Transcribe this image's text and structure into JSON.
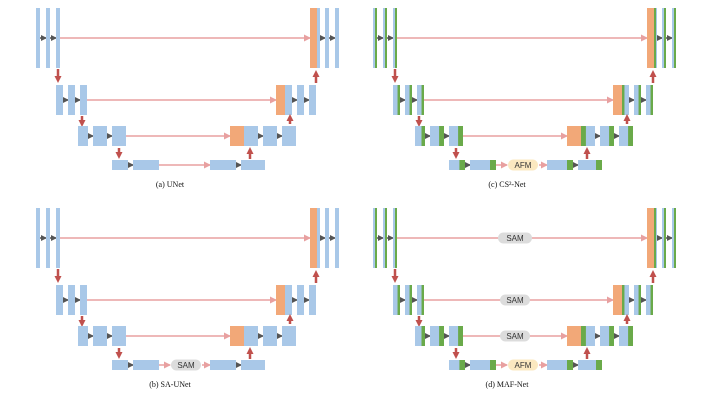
{
  "colors": {
    "feature_map": "#a9c8e8",
    "feature_map_green": "#6aaa4a",
    "concat_map": "#f2a878",
    "skip_line": "#e8a0a0",
    "down_up_arrow": "#c0504d",
    "conv_arrow": "#555555",
    "sam_fill": "#dcdcdc",
    "afm_fill": "#fbe8c0"
  },
  "icons": [
    "right-arrow-icon",
    "down-arrow-icon",
    "up-arrow-icon"
  ],
  "panels": [
    {
      "caption": "(a) UNet",
      "bottom_block": "",
      "skip_labels": [
        "",
        "",
        ""
      ]
    },
    {
      "caption": "(c) CS²-Net",
      "bottom_block": "AFM",
      "skip_labels": [
        "",
        "",
        ""
      ]
    },
    {
      "caption": "(b) SA-UNet",
      "bottom_block": "SAM",
      "skip_labels": [
        "",
        "",
        ""
      ]
    },
    {
      "caption": "(d) MAF-Net",
      "bottom_block": "AFM",
      "skip_labels": [
        "SAM",
        "SAM",
        "SAM"
      ]
    }
  ]
}
